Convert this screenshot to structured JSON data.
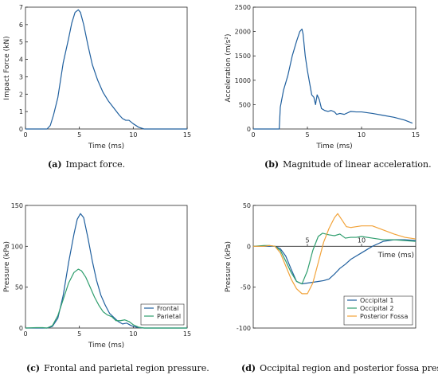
{
  "colors": {
    "blue": "#1f5f9e",
    "green": "#2f9e6e",
    "orange": "#f2a33a",
    "axis": "#262626"
  },
  "chart_data": [
    {
      "id": "a",
      "type": "line",
      "caption_letter": "(a)",
      "caption": "Impact force.",
      "xlabel": "Time (ms)",
      "ylabel": "Impact Force (kN)",
      "xlim": [
        0,
        15
      ],
      "ylim": [
        0,
        7
      ],
      "xticks": [
        0,
        5,
        10,
        15
      ],
      "yticks": [
        0,
        1,
        2,
        3,
        4,
        5,
        6,
        7
      ],
      "grid": false,
      "legend": null,
      "series": [
        {
          "color": "#1f5f9e",
          "x": [
            0,
            1,
            2,
            2.3,
            2.6,
            3,
            3.5,
            4,
            4.3,
            4.6,
            4.9,
            5.1,
            5.4,
            5.8,
            6.2,
            6.7,
            7.2,
            7.7,
            8.2,
            8.7,
            9.0,
            9.3,
            9.6,
            10.0,
            10.5,
            11,
            15
          ],
          "y": [
            0,
            0,
            0,
            0.2,
            0.8,
            1.8,
            3.8,
            5.2,
            6.1,
            6.7,
            6.85,
            6.7,
            6.0,
            4.8,
            3.7,
            2.8,
            2.1,
            1.6,
            1.2,
            0.8,
            0.6,
            0.5,
            0.5,
            0.3,
            0.1,
            0,
            0
          ]
        }
      ]
    },
    {
      "id": "b",
      "type": "line",
      "caption_letter": "(b)",
      "caption": "Magnitude of linear acceleration.",
      "xlabel": "Time (ms)",
      "ylabel": "Acceleration (m/s²)",
      "xlim": [
        0,
        15
      ],
      "ylim": [
        0,
        2500
      ],
      "xticks": [
        0,
        5,
        10,
        15
      ],
      "yticks": [
        0,
        500,
        1000,
        1500,
        2000,
        2500
      ],
      "grid": false,
      "legend": null,
      "series": [
        {
          "color": "#1f5f9e",
          "x": [
            0,
            1,
            2,
            2.4,
            2.5,
            2.8,
            3.2,
            3.6,
            4.0,
            4.3,
            4.5,
            4.6,
            4.8,
            5.0,
            5.2,
            5.4,
            5.6,
            5.75,
            5.9,
            6.1,
            6.3,
            6.6,
            6.9,
            7.2,
            7.5,
            7.7,
            8.0,
            8.4,
            9.0,
            9.5,
            10.0,
            11.0,
            12.0,
            13.0,
            14.0,
            14.7
          ],
          "y": [
            0,
            0,
            0,
            0,
            450,
            800,
            1100,
            1500,
            1800,
            2000,
            2050,
            1950,
            1500,
            1200,
            950,
            700,
            650,
            500,
            700,
            600,
            420,
            380,
            360,
            380,
            350,
            300,
            320,
            300,
            360,
            350,
            350,
            320,
            280,
            240,
            180,
            120
          ]
        }
      ]
    },
    {
      "id": "c",
      "type": "line",
      "caption_letter": "(c)",
      "caption": "Frontal and parietal region pressure.",
      "xlabel": "Time (ms)",
      "ylabel": "Pressure (kPa)",
      "xlim": [
        0,
        15
      ],
      "ylim": [
        0,
        150
      ],
      "xticks": [
        0,
        5,
        10,
        15
      ],
      "yticks": [
        0,
        50,
        100,
        150
      ],
      "grid": false,
      "legend": "bottom-right",
      "series": [
        {
          "name": "Frontal",
          "color": "#1f5f9e",
          "x": [
            0,
            1,
            2,
            2.5,
            3,
            3.5,
            4,
            4.5,
            4.8,
            5.1,
            5.4,
            5.8,
            6.2,
            6.6,
            7.0,
            7.4,
            7.8,
            8.2,
            8.6,
            9.0,
            9.4,
            9.8,
            10.3,
            11,
            12,
            15
          ],
          "y": [
            0,
            0,
            0,
            2,
            12,
            40,
            80,
            115,
            133,
            140,
            135,
            110,
            82,
            58,
            40,
            28,
            18,
            13,
            8,
            5,
            6,
            3,
            1,
            0,
            0,
            0
          ]
        },
        {
          "name": "Parietal",
          "color": "#2f9e6e",
          "x": [
            0,
            1,
            1.6,
            2,
            2.5,
            3,
            3.5,
            4,
            4.5,
            4.9,
            5.2,
            5.6,
            6.0,
            6.4,
            6.8,
            7.2,
            7.6,
            8.0,
            8.4,
            8.8,
            9.2,
            9.6,
            10.0,
            10.5,
            11,
            12,
            15
          ],
          "y": [
            0,
            0.5,
            0.5,
            0,
            3,
            15,
            35,
            55,
            68,
            72,
            70,
            62,
            50,
            38,
            28,
            20,
            16,
            14,
            9,
            9,
            10,
            8,
            4,
            1,
            0,
            0,
            0
          ]
        }
      ]
    },
    {
      "id": "d",
      "type": "line",
      "caption_letter": "(d)",
      "caption": "Occipital region and posterior fossa pressure.",
      "xlabel": "Time (ms)",
      "ylabel": "Pressure (kPa)",
      "xlim": [
        0,
        15
      ],
      "ylim": [
        -100,
        50
      ],
      "xticks": [
        5,
        10
      ],
      "yticks": [
        -100,
        -50,
        0,
        50
      ],
      "grid": false,
      "legend": "bottom-right",
      "series": [
        {
          "name": "Occipital 1",
          "color": "#1f5f9e",
          "x": [
            0,
            1,
            2,
            2.5,
            3,
            3.5,
            4,
            4.5,
            5,
            5.5,
            6,
            6.5,
            7,
            7.5,
            8,
            8.5,
            9,
            9.5,
            10,
            10.5,
            11,
            11.5,
            12,
            13,
            14,
            15
          ],
          "y": [
            0,
            0,
            0,
            -3,
            -12,
            -28,
            -43,
            -46,
            -45,
            -44,
            -43,
            -42,
            -40,
            -34,
            -27,
            -22,
            -16,
            -12,
            -8,
            -4,
            0,
            3,
            6,
            8,
            8,
            7
          ]
        },
        {
          "name": "Occipital 2",
          "color": "#2f9e6e",
          "x": [
            0,
            1,
            1.5,
            2,
            2.5,
            3,
            3.5,
            4,
            4.5,
            5,
            5.5,
            6,
            6.4,
            7,
            7.5,
            8,
            8.5,
            9,
            9.5,
            10,
            11,
            12,
            13,
            14,
            15
          ],
          "y": [
            0,
            1,
            1,
            0,
            -5,
            -18,
            -32,
            -43,
            -46,
            -30,
            -5,
            12,
            16,
            14,
            13,
            15,
            10,
            11,
            11,
            12,
            10,
            8,
            8,
            7,
            6
          ]
        },
        {
          "name": "Posterior Fossa",
          "color": "#f2a33a",
          "x": [
            0,
            1,
            1.5,
            2,
            2.5,
            3,
            3.5,
            4,
            4.5,
            5,
            5.5,
            6,
            6.5,
            7,
            7.5,
            7.8,
            8.2,
            8.6,
            9,
            9.5,
            10,
            11,
            12,
            13,
            14,
            15
          ],
          "y": [
            0,
            0,
            1,
            0,
            -8,
            -24,
            -40,
            -52,
            -58,
            -58,
            -45,
            -20,
            5,
            22,
            35,
            40,
            32,
            24,
            23,
            24,
            25,
            25,
            20,
            15,
            11,
            9
          ]
        }
      ]
    }
  ]
}
